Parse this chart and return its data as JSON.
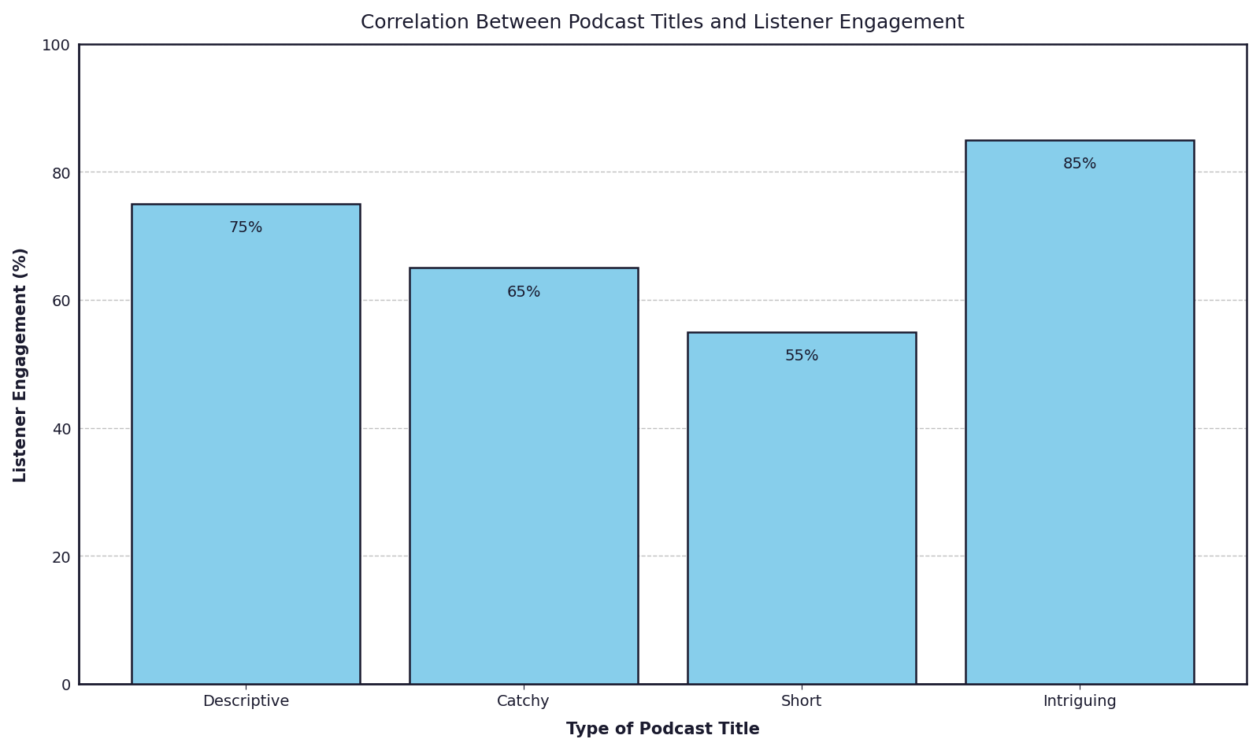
{
  "title": "Correlation Between Podcast Titles and Listener Engagement",
  "xlabel": "Type of Podcast Title",
  "ylabel": "Listener Engagement (%)",
  "categories": [
    "Descriptive",
    "Catchy",
    "Short",
    "Intriguing"
  ],
  "values": [
    75,
    65,
    55,
    85
  ],
  "labels": [
    "75%",
    "65%",
    "55%",
    "85%"
  ],
  "bar_color": "#87CEEB",
  "bar_edgecolor": "#1a1a2e",
  "ylim": [
    0,
    100
  ],
  "yticks": [
    0,
    20,
    40,
    60,
    80,
    100
  ],
  "grid_color": "#c0c0c0",
  "grid_linestyle": "--",
  "title_fontsize": 18,
  "label_fontsize": 15,
  "tick_fontsize": 14,
  "annotation_fontsize": 14,
  "bar_width": 0.82
}
